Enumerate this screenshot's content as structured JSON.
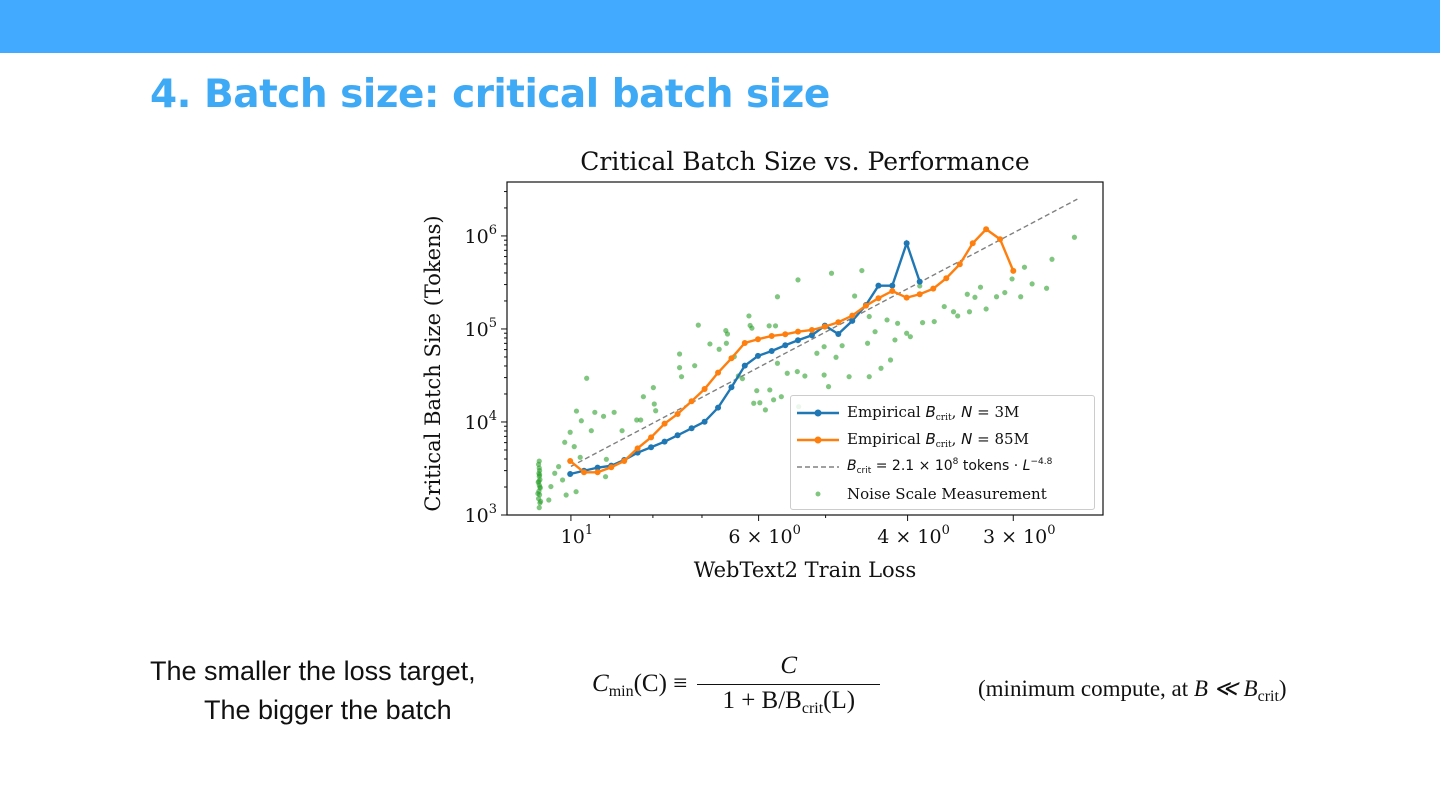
{
  "slide": {
    "title": "4. Batch size: critical batch size",
    "caption_line1": "The smaller the loss target,",
    "caption_line2": "The bigger the batch",
    "formula": {
      "lhs_symbol": "C",
      "lhs_sub": "min",
      "lhs_arg": "(C) ≡",
      "numerator": "C",
      "den_prefix": "1 + B/B",
      "den_sub": "crit",
      "den_suffix": "(L)"
    },
    "note": {
      "prefix": "(minimum compute, at ",
      "rel": "B ≪ B",
      "sub": "crit",
      "suffix": ")"
    },
    "colors": {
      "header_bar": "#42abff",
      "title": "#3ea9f5"
    }
  },
  "chart_data": {
    "type": "line",
    "title": "Critical Batch Size vs. Performance",
    "xlabel": "WebText2 Train Loss",
    "ylabel": "Critical Batch Size (Tokens)",
    "x_scale": "log",
    "x_inverted": true,
    "y_scale": "log",
    "xlim": [
      11.9,
      2.35
    ],
    "ylim": [
      1000,
      3800000
    ],
    "grid": false,
    "legend_position": "bottom-right",
    "x_ticks": [
      {
        "value": 10,
        "label": "10",
        "sup": "1"
      },
      {
        "value": 6,
        "label": "6 × 10",
        "sup": "0"
      },
      {
        "value": 4,
        "label": "4 × 10",
        "sup": "0"
      },
      {
        "value": 3,
        "label": "3 × 10",
        "sup": "0"
      }
    ],
    "y_ticks": [
      {
        "value": 1000,
        "label": "10",
        "sup": "3"
      },
      {
        "value": 10000,
        "label": "10",
        "sup": "4"
      },
      {
        "value": 100000,
        "label": "10",
        "sup": "5"
      },
      {
        "value": 1000000,
        "label": "10",
        "sup": "6"
      }
    ],
    "series": [
      {
        "name": "Empirical B_crit, N = 3M",
        "color": "#1f77b4",
        "style": "line-marker",
        "x": [
          10.02,
          9.65,
          9.3,
          8.96,
          8.65,
          8.34,
          8.04,
          7.75,
          7.48,
          7.2,
          6.95,
          6.7,
          6.46,
          6.23,
          6.01,
          5.79,
          5.58,
          5.39,
          5.19,
          5.01,
          4.83,
          4.65,
          4.48,
          4.33,
          4.17,
          4.01,
          3.87
        ],
        "y": [
          2760,
          2990,
          3230,
          3390,
          3900,
          4680,
          5350,
          6140,
          7190,
          8550,
          10070,
          14250,
          23600,
          40300,
          51300,
          58000,
          66800,
          75600,
          85500,
          108600,
          88300,
          122000,
          181000,
          292000,
          292000,
          834000,
          323000
        ]
      },
      {
        "name": "Empirical B_crit, N = 85M",
        "color": "#ff7f0e",
        "style": "line-marker",
        "x": [
          10.02,
          9.65,
          9.3,
          8.96,
          8.65,
          8.34,
          8.04,
          7.75,
          7.48,
          7.2,
          6.95,
          6.7,
          6.46,
          6.23,
          6.01,
          5.79,
          5.58,
          5.39,
          5.19,
          5.01,
          4.83,
          4.65,
          4.48,
          4.33,
          4.17,
          4.01,
          3.87,
          3.73,
          3.6,
          3.47,
          3.35,
          3.23,
          3.11,
          3.0
        ],
        "y": [
          3810,
          2880,
          2880,
          3260,
          3810,
          5210,
          6840,
          9590,
          12200,
          16700,
          22600,
          33900,
          48400,
          70700,
          77500,
          84100,
          87700,
          93500,
          97500,
          106000,
          118000,
          139000,
          178000,
          214000,
          256000,
          217000,
          236000,
          271000,
          351000,
          496000,
          834000,
          1180000,
          922000,
          421000
        ]
      },
      {
        "name": "B_crit = 2.1 × 10^8 tokens · L^-4.8",
        "color": "#808080",
        "style": "dashed",
        "coefficient": 210000000,
        "exponent": -4.8,
        "x_range": [
          10.0,
          2.52
        ]
      },
      {
        "name": "Noise Scale Measurement",
        "color": "#2ca02c",
        "style": "scatter",
        "points": [
          [
            9.58,
            29500
          ],
          [
            9.85,
            13100
          ],
          [
            9.37,
            12700
          ],
          [
            9.15,
            11500
          ],
          [
            8.89,
            12700
          ],
          [
            9.72,
            10300
          ],
          [
            9.46,
            8060
          ],
          [
            8.7,
            8060
          ],
          [
            9.08,
            3970
          ],
          [
            9.1,
            2580
          ],
          [
            10.17,
            6050
          ],
          [
            9.91,
            5430
          ],
          [
            9.75,
            4170
          ],
          [
            10.02,
            7750
          ],
          [
            10.34,
            3310
          ],
          [
            10.45,
            2810
          ],
          [
            10.23,
            2380
          ],
          [
            10.56,
            2020
          ],
          [
            10.62,
            1450
          ],
          [
            10.13,
            1640
          ],
          [
            9.86,
            1780
          ],
          [
            8.21,
            18700
          ],
          [
            7.99,
            23400
          ],
          [
            7.97,
            15600
          ],
          [
            7.94,
            13200
          ],
          [
            8.36,
            10500
          ],
          [
            8.27,
            10500
          ],
          [
            7.44,
            53800
          ],
          [
            7.44,
            38400
          ],
          [
            7.4,
            30700
          ],
          [
            7.14,
            40300
          ],
          [
            7.07,
            110000
          ],
          [
            6.85,
            69000
          ],
          [
            6.68,
            60500
          ],
          [
            6.56,
            95900
          ],
          [
            6.53,
            88300
          ],
          [
            6.55,
            70200
          ],
          [
            6.16,
            138000
          ],
          [
            6.14,
            109000
          ],
          [
            6.11,
            102000
          ],
          [
            5.83,
            108000
          ],
          [
            5.73,
            108000
          ],
          [
            5.7,
            222000
          ],
          [
            5.39,
            337000
          ],
          [
            4.92,
            397000
          ],
          [
            4.53,
            424000
          ],
          [
            6.41,
            50400
          ],
          [
            6.34,
            31200
          ],
          [
            6.27,
            29200
          ],
          [
            6.03,
            21700
          ],
          [
            5.82,
            22100
          ],
          [
            6.08,
            15900
          ],
          [
            5.98,
            16100
          ],
          [
            5.89,
            13500
          ],
          [
            5.76,
            17300
          ],
          [
            5.64,
            18700
          ],
          [
            5.55,
            33400
          ],
          [
            5.4,
            34800
          ],
          [
            5.29,
            31200
          ],
          [
            5.02,
            32000
          ],
          [
            4.69,
            30700
          ],
          [
            5.12,
            54800
          ],
          [
            5.02,
            64500
          ],
          [
            4.86,
            49600
          ],
          [
            4.78,
            66100
          ],
          [
            4.62,
            226000
          ],
          [
            4.44,
            136000
          ],
          [
            4.37,
            93500
          ],
          [
            4.23,
            125000
          ],
          [
            4.14,
            76200
          ],
          [
            4.01,
            89900
          ],
          [
            3.97,
            82600
          ],
          [
            3.87,
            290000
          ],
          [
            3.84,
            117000
          ],
          [
            4.44,
            30700
          ],
          [
            4.3,
            37800
          ],
          [
            4.19,
            46400
          ],
          [
            4.11,
            115000
          ],
          [
            3.72,
            120000
          ],
          [
            3.62,
            174000
          ],
          [
            3.53,
            153000
          ],
          [
            3.49,
            138000
          ],
          [
            3.4,
            236000
          ],
          [
            3.33,
            219000
          ],
          [
            3.23,
            164000
          ],
          [
            3.14,
            222000
          ],
          [
            3.07,
            246000
          ],
          [
            3.01,
            345000
          ],
          [
            2.94,
            222000
          ],
          [
            2.85,
            305000
          ],
          [
            2.74,
            274000
          ],
          [
            2.7,
            561000
          ],
          [
            2.91,
            461000
          ],
          [
            2.54,
            968000
          ],
          [
            3.28,
            281000
          ],
          [
            3.38,
            153000
          ],
          [
            4.96,
            24000
          ],
          [
            5.38,
            14600
          ],
          [
            5.7,
            42800
          ],
          [
            4.46,
            70200
          ],
          [
            10.9,
            1200
          ],
          [
            10.88,
            1350
          ],
          [
            10.92,
            1500
          ],
          [
            10.89,
            1650
          ],
          [
            10.91,
            1800
          ],
          [
            10.87,
            1950
          ],
          [
            10.9,
            2100
          ],
          [
            10.93,
            2250
          ],
          [
            10.88,
            2400
          ],
          [
            10.9,
            2600
          ],
          [
            10.91,
            2800
          ],
          [
            10.89,
            3000
          ],
          [
            10.9,
            3200
          ],
          [
            10.92,
            3500
          ],
          [
            10.9,
            3800
          ],
          [
            10.86,
            1400
          ],
          [
            10.94,
            1700
          ],
          [
            10.88,
            2000
          ],
          [
            10.91,
            2300
          ],
          [
            10.89,
            2700
          ]
        ]
      }
    ],
    "legend": [
      {
        "prefix": "Empirical ",
        "sym": "B",
        "sub": "crit",
        "suffix": ", ",
        "sym2": "N",
        "suffix2": " = 3M"
      },
      {
        "prefix": "Empirical ",
        "sym": "B",
        "sub": "crit",
        "suffix": ", ",
        "sym2": "N",
        "suffix2": " = 85M"
      },
      {
        "prefix": "",
        "sym": "B",
        "sub": "crit",
        "suffix": " = 2.1 × 10",
        "sup": "8",
        "suffix2": " tokens · ",
        "sym2": "L",
        "sup2": "−4.8"
      },
      {
        "prefix": "Noise Scale Measurement"
      }
    ]
  }
}
